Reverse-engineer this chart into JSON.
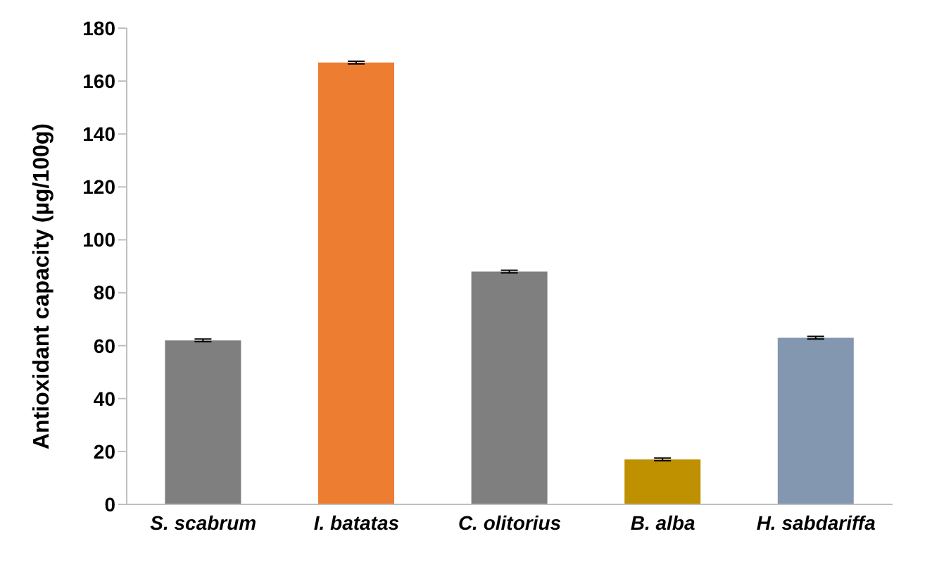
{
  "chart_data": {
    "type": "bar",
    "ylabel": "Antioxidant capacity (µg/100g)",
    "categories": [
      "S. scabrum",
      "I. batatas",
      "C. olitorius",
      "B. alba",
      "H. sabdariffa"
    ],
    "values": [
      62,
      167,
      88,
      17,
      63
    ],
    "errors": [
      0.5,
      0.5,
      0.5,
      0.5,
      0.5
    ],
    "colors": [
      "#7f7f7f",
      "#ed7d31",
      "#7f7f7f",
      "#bf9000",
      "#8497b0"
    ],
    "ylim": [
      0,
      180
    ],
    "yticks": [
      0,
      20,
      40,
      60,
      80,
      100,
      120,
      140,
      160,
      180
    ],
    "grid": false,
    "legend": false
  }
}
